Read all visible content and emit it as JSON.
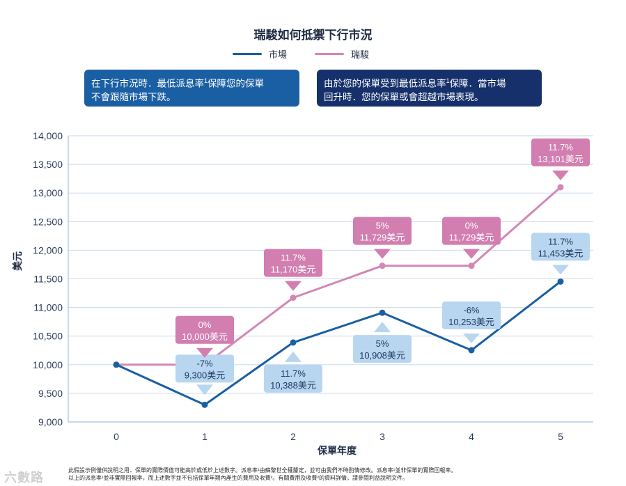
{
  "title": "瑞駿如何抵禦下行市況",
  "legend": {
    "market": {
      "label": "市場",
      "color": "#1a5fa3"
    },
    "ruijun": {
      "label": "瑞駿",
      "color": "#d387b6"
    }
  },
  "callouts": {
    "market_line1": "在下行市況時．最低派息率",
    "market_sup": "1",
    "market_line1b": "保障您的保單",
    "market_line2": "不會跟隨市場下跌。",
    "ruijun_line1": "由於您的保單受到最低派息率",
    "ruijun_sup": "1",
    "ruijun_line1b": "保障．當市場",
    "ruijun_line2": "回升時．您的保單或會超越市場表現。"
  },
  "chart_data": {
    "type": "line",
    "title": "瑞駿如何抵禦下行市況",
    "xlabel": "保單年度",
    "ylabel": "美元",
    "x": [
      0,
      1,
      2,
      3,
      4,
      5
    ],
    "ylim": [
      9000,
      14000
    ],
    "yticks": [
      "9,000",
      "9,500",
      "10,000",
      "10,500",
      "11,000",
      "11,500",
      "12,000",
      "12,500",
      "13,000",
      "13,500",
      "14,000"
    ],
    "ytick_values": [
      9000,
      9500,
      10000,
      10500,
      11000,
      11500,
      12000,
      12500,
      13000,
      13500,
      14000
    ],
    "xticks": [
      "0",
      "1",
      "2",
      "3",
      "4",
      "5"
    ],
    "grid": true,
    "series": [
      {
        "name": "市場",
        "color": "#1a5fa3",
        "values": [
          10000,
          9300,
          10388,
          10908,
          10253,
          11453
        ],
        "labels": [
          null,
          {
            "pct": "-7%",
            "amount": "9,300美元",
            "pos": "below"
          },
          {
            "pct": "11.7%",
            "amount": "10,388美元",
            "pos": "below"
          },
          {
            "pct": "5%",
            "amount": "10,908美元",
            "pos": "below"
          },
          {
            "pct": "-6%",
            "amount": "10,253美元",
            "pos": "above"
          },
          {
            "pct": "11.7%",
            "amount": "11,453美元",
            "pos": "above"
          }
        ]
      },
      {
        "name": "瑞駿",
        "color": "#d387b6",
        "values": [
          10000,
          10000,
          11170,
          11729,
          11729,
          13101
        ],
        "labels": [
          null,
          {
            "pct": "0%",
            "amount": "10,000美元",
            "pos": "above"
          },
          {
            "pct": "11.7%",
            "amount": "11,170美元",
            "pos": "above"
          },
          {
            "pct": "5%",
            "amount": "11,729美元",
            "pos": "above"
          },
          {
            "pct": "0%",
            "amount": "11,729美元",
            "pos": "above"
          },
          {
            "pct": "11.7%",
            "amount": "13,101美元",
            "pos": "above"
          }
        ]
      }
    ]
  },
  "footnote": {
    "line1": "此假設示例僅供說明之用．保單的實際價值可能高於或低於上述數字。派息率¹由蘇黎世全權釐定，並可由我們不時酌情修改。派息率¹並非保單的實際回報率。",
    "line2": "以上的派息率¹並非實際回報率，而上述數字並不包括保單年期內產生的費用及收費²。有關費用及收費²的資料詳情，請參閱利益說明文件。"
  },
  "watermark": "六數路"
}
